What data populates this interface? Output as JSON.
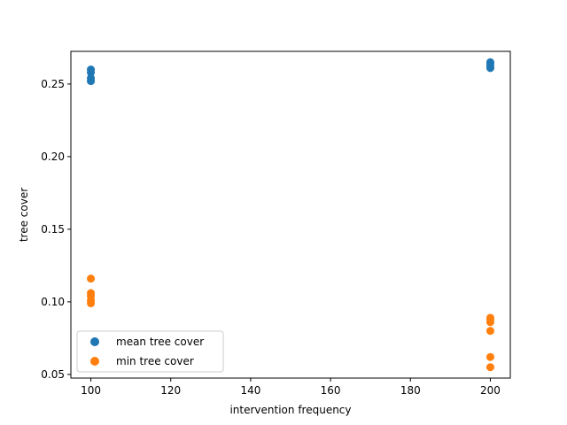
{
  "chart_data": {
    "type": "scatter",
    "xlabel": "intervention frequency",
    "ylabel": "tree cover",
    "xlim": [
      95,
      205
    ],
    "ylim": [
      0.0475,
      0.2725
    ],
    "xticks": [
      "100",
      "120",
      "140",
      "160",
      "180",
      "200"
    ],
    "yticks": [
      "0.05",
      "0.10",
      "0.15",
      "0.20",
      "0.25"
    ],
    "grid": false,
    "legend_position": "lower-left",
    "series": [
      {
        "name": "mean tree cover",
        "color": "#1f77b4",
        "points": [
          {
            "x": 100,
            "y": 0.26
          },
          {
            "x": 100,
            "y": 0.258
          },
          {
            "x": 100,
            "y": 0.254
          },
          {
            "x": 100,
            "y": 0.252
          },
          {
            "x": 200,
            "y": 0.265
          },
          {
            "x": 200,
            "y": 0.264
          },
          {
            "x": 200,
            "y": 0.262
          },
          {
            "x": 200,
            "y": 0.261
          }
        ]
      },
      {
        "name": "min tree cover",
        "color": "#ff7f0e",
        "points": [
          {
            "x": 100,
            "y": 0.116
          },
          {
            "x": 100,
            "y": 0.106
          },
          {
            "x": 100,
            "y": 0.104
          },
          {
            "x": 100,
            "y": 0.101
          },
          {
            "x": 100,
            "y": 0.099
          },
          {
            "x": 200,
            "y": 0.089
          },
          {
            "x": 200,
            "y": 0.088
          },
          {
            "x": 200,
            "y": 0.086
          },
          {
            "x": 200,
            "y": 0.08
          },
          {
            "x": 200,
            "y": 0.062
          },
          {
            "x": 200,
            "y": 0.055
          }
        ]
      }
    ]
  }
}
